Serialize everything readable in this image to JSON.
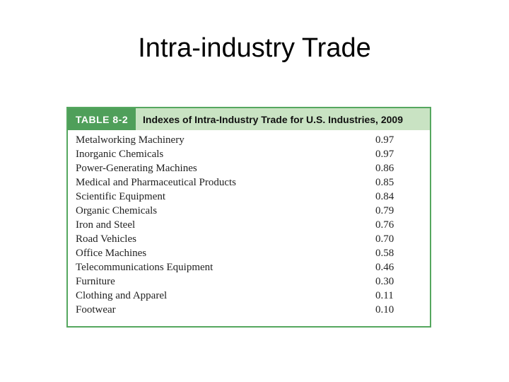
{
  "slide": {
    "title": "Intra-industry Trade"
  },
  "table": {
    "label": "TABLE 8-2",
    "caption": "Indexes of Intra-Industry Trade for U.S. Industries, 2009",
    "rows": [
      {
        "industry": "Metalworking Machinery",
        "index": "0.97"
      },
      {
        "industry": "Inorganic Chemicals",
        "index": "0.97"
      },
      {
        "industry": "Power-Generating Machines",
        "index": "0.86"
      },
      {
        "industry": "Medical and Pharmaceutical Products",
        "index": "0.85"
      },
      {
        "industry": "Scientific Equipment",
        "index": "0.84"
      },
      {
        "industry": "Organic Chemicals",
        "index": "0.79"
      },
      {
        "industry": "Iron and Steel",
        "index": "0.76"
      },
      {
        "industry": "Road Vehicles",
        "index": "0.70"
      },
      {
        "industry": "Office Machines",
        "index": "0.58"
      },
      {
        "industry": "Telecommunications Equipment",
        "index": "0.46"
      },
      {
        "industry": "Furniture",
        "index": "0.30"
      },
      {
        "industry": "Clothing and Apparel",
        "index": "0.11"
      },
      {
        "industry": "Footwear",
        "index": "0.10"
      }
    ]
  },
  "colors": {
    "label_bg": "#4f9f5a",
    "caption_bg": "#c9e3c3",
    "border": "#55a75f"
  }
}
